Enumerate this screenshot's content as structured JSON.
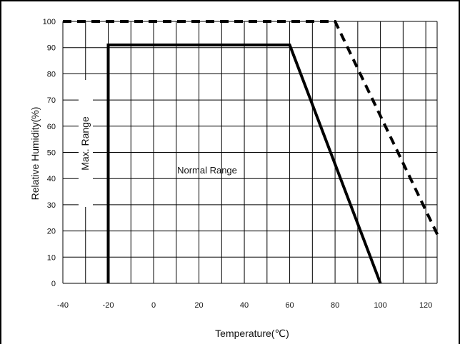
{
  "chart_data": {
    "type": "line",
    "title": "",
    "xlabel": "Temperature(℃)",
    "ylabel": "Relative Humidity(%)",
    "xlim": [
      -40,
      125
    ],
    "ylim": [
      0,
      100
    ],
    "x_ticks": [
      "-40",
      "-20",
      "0",
      "20",
      "40",
      "60",
      "80",
      "100",
      "120"
    ],
    "y_ticks": [
      "0",
      "10",
      "20",
      "30",
      "40",
      "50",
      "60",
      "70",
      "80",
      "90",
      "100"
    ],
    "grid": true,
    "series": [
      {
        "name": "Normal Range",
        "style": "solid",
        "x": [
          -20,
          -20,
          60,
          100
        ],
        "y": [
          0,
          91,
          91,
          0
        ]
      },
      {
        "name": "Max. Range",
        "style": "dashed",
        "x": [
          -40,
          80,
          126
        ],
        "y": [
          100,
          100,
          17
        ]
      }
    ],
    "annotations": [
      {
        "text": "Normal Range"
      },
      {
        "text": "Max. Range"
      }
    ],
    "colors": {
      "line": "#000000",
      "grid": "#000000"
    }
  }
}
